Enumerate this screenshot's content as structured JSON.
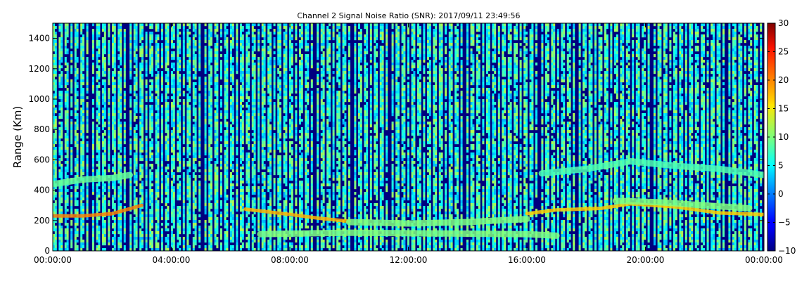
{
  "chart_data": {
    "type": "heatmap",
    "title": "Channel 2 Signal Noise Ratio (SNR): 2017/09/11 23:49:56",
    "xlabel": "",
    "ylabel": "Range (Km)",
    "xlim_hours": [
      0,
      24
    ],
    "ylim": [
      0,
      1500
    ],
    "x_ticks": [
      {
        "hour": 0,
        "label": "00:00:00"
      },
      {
        "hour": 4,
        "label": "04:00:00"
      },
      {
        "hour": 8,
        "label": "08:00:00"
      },
      {
        "hour": 12,
        "label": "12:00:00"
      },
      {
        "hour": 16,
        "label": "16:00:00"
      },
      {
        "hour": 20,
        "label": "20:00:00"
      },
      {
        "hour": 24,
        "label": "00:00:00"
      }
    ],
    "y_ticks": [
      0,
      200,
      400,
      600,
      800,
      1000,
      1200,
      1400
    ],
    "colorbar": {
      "colormap": "jet",
      "min": -10,
      "max": 30,
      "ticks": [
        -10,
        -5,
        0,
        5,
        10,
        15,
        20,
        25,
        30
      ]
    },
    "features": [
      {
        "name": "",
        "x": [
          0.0,
          1.0,
          2.0,
          3.0
        ],
        "y": [
          230,
          230,
          245,
          300
        ],
        "snr": 20
      },
      {
        "name": "",
        "x": [
          6.5,
          8.0,
          9.0,
          10.0
        ],
        "y": [
          275,
          240,
          215,
          195
        ],
        "snr": 18
      },
      {
        "name": "",
        "x": [
          10.0,
          12.0,
          14.0,
          16.0
        ],
        "y": [
          190,
          180,
          190,
          210
        ],
        "snr": 10
      },
      {
        "name": "",
        "x": [
          16.0,
          17.0,
          18.5,
          19.5,
          21.0,
          22.5,
          24.0
        ],
        "y": [
          245,
          270,
          280,
          310,
          290,
          250,
          240
        ],
        "snr": 17
      },
      {
        "name": "",
        "x": [
          7.0,
          10.0,
          13.0,
          16.0,
          17.0
        ],
        "y": [
          110,
          120,
          115,
          110,
          100
        ],
        "snr": 10
      },
      {
        "name": "",
        "x": [
          0.0,
          1.0,
          2.0,
          2.6
        ],
        "y": [
          440,
          470,
          480,
          500
        ],
        "snr": 9
      },
      {
        "name": "",
        "x": [
          16.5,
          18.0,
          19.5,
          21.0,
          22.5,
          24.0
        ],
        "y": [
          510,
          540,
          590,
          560,
          540,
          500
        ],
        "snr": 8
      },
      {
        "name": "",
        "x": [
          19.0,
          20.5,
          22.0,
          23.5
        ],
        "y": [
          330,
          320,
          300,
          280
        ],
        "snr": 10
      }
    ]
  }
}
